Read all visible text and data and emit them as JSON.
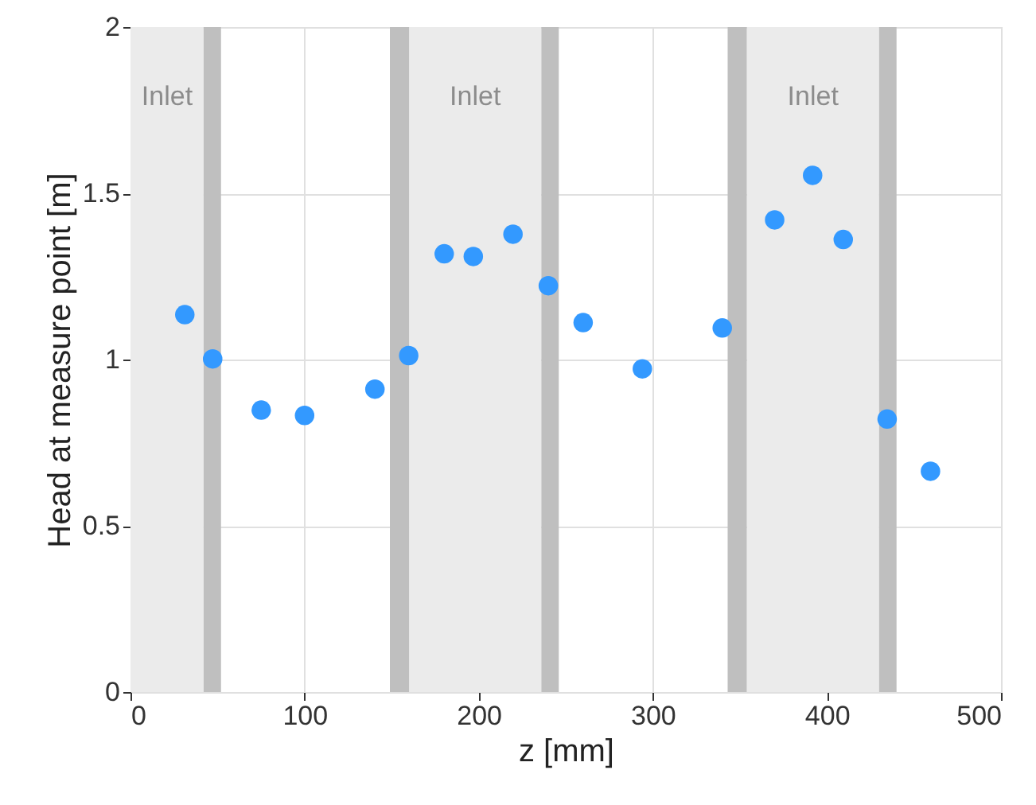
{
  "chart_data": {
    "type": "scatter",
    "xlabel": "z [mm]",
    "ylabel": "Head at measure point [m]",
    "x": [
      31.2,
      47.2,
      75.1,
      100,
      140.4,
      159.8,
      180.2,
      196.9,
      219.7,
      240,
      260,
      294,
      339.9,
      370,
      391.8,
      409.4,
      434.6,
      459.5
    ],
    "series": [
      {
        "color": "#3399ff",
        "values": [
          1.135,
          1.002,
          0.848,
          0.832,
          0.911,
          1.012,
          1.318,
          1.31,
          1.377,
          1.222,
          1.111,
          0.972,
          1.095,
          1.42,
          1.554,
          1.361,
          0.821,
          0.664
        ]
      }
    ],
    "xlim": [
      0,
      500
    ],
    "xticks": [
      0,
      100,
      200,
      300,
      400,
      500
    ],
    "ylim": [
      0,
      2
    ],
    "yticks": [
      0,
      0.5,
      1,
      1.5,
      2
    ],
    "bands": [
      {
        "axis": "x",
        "from": 0,
        "to": 42,
        "label": "Inlet",
        "color": "#ebebeb"
      },
      {
        "axis": "x",
        "from": 160,
        "to": 236,
        "label": "Inlet",
        "color": "#ebebeb"
      },
      {
        "axis": "x",
        "from": 354,
        "to": 430,
        "label": "Inlet",
        "color": "#ebebeb"
      },
      {
        "axis": "x",
        "from": 42,
        "to": 52,
        "color": "#bfbfbf"
      },
      {
        "axis": "x",
        "from": 149,
        "to": 160,
        "color": "#bfbfbf"
      },
      {
        "axis": "x",
        "from": 236,
        "to": 246,
        "color": "#bfbfbf"
      },
      {
        "axis": "x",
        "from": 343,
        "to": 354,
        "color": "#bfbfbf"
      },
      {
        "axis": "x",
        "from": 430,
        "to": 440,
        "color": "#bfbfbf"
      }
    ],
    "grid": true,
    "marker": "circle"
  }
}
